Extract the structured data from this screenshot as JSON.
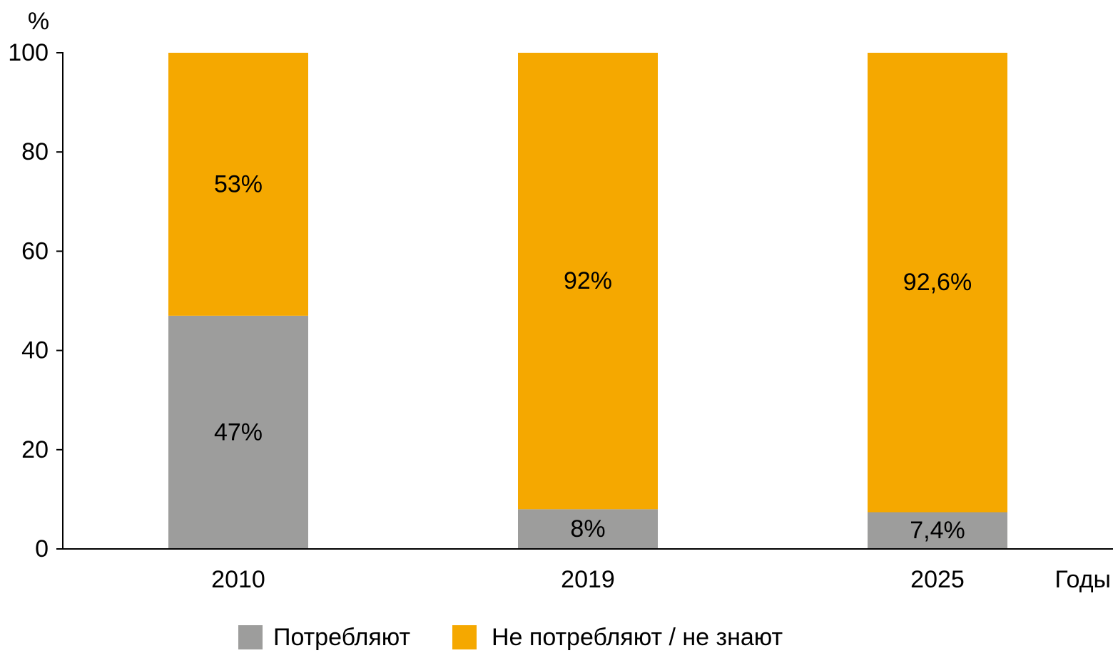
{
  "chart_data": {
    "type": "bar",
    "stacked": true,
    "categories": [
      "2010",
      "2019",
      "2025"
    ],
    "series": [
      {
        "name": "Потребляют",
        "values": [
          47,
          8,
          7.4
        ],
        "labels": [
          "47%",
          "8%",
          "7,4%"
        ],
        "color": "#9d9d9c"
      },
      {
        "name": "Не потребляют / не знают",
        "values": [
          53,
          92,
          92.6
        ],
        "labels": [
          "53%",
          "92%",
          "92,6%"
        ],
        "color": "#f5a800"
      }
    ],
    "ylabel": "%",
    "xlabel": "Годы",
    "ylim": [
      0,
      100
    ],
    "yticks": [
      "0",
      "20",
      "40",
      "60",
      "80",
      "100"
    ],
    "grid": false,
    "legend_position": "bottom"
  }
}
